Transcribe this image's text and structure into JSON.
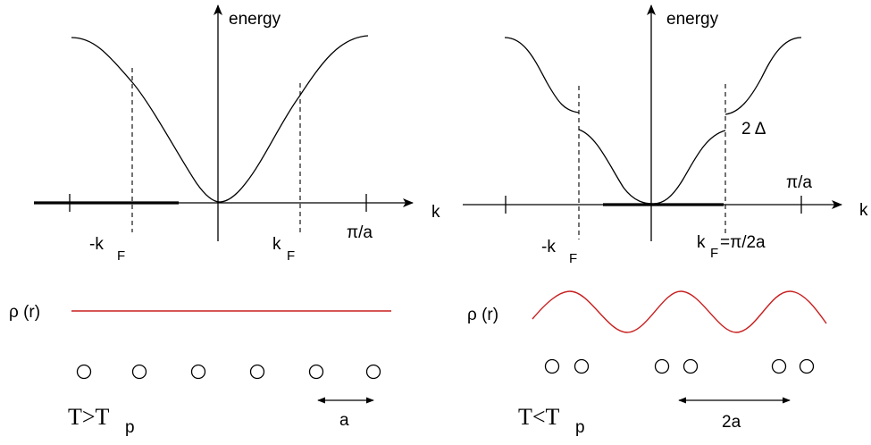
{
  "left_panel": {
    "axis_y_label": "energy",
    "axis_x_label": "k",
    "kf_neg_label": "-k",
    "kf_pos_label": "k",
    "kf_subscript": "F",
    "zone_edge_label": "π/a",
    "rho_label": "ρ (r)",
    "atom_count": 6,
    "lattice_label": "a",
    "temp_label_main": "T>T",
    "temp_label_sub": "p"
  },
  "right_panel": {
    "axis_y_label": "energy",
    "axis_x_label": "k",
    "kf_neg_label": "-k",
    "kf_pos_label": "k",
    "kf_subscript": "F",
    "kf_pos_suffix": "=π/2a",
    "zone_edge_label": "π/a",
    "gap_label": "2 Δ",
    "rho_label": "ρ (r)",
    "atom_pairs": 3,
    "lattice_label": "2a",
    "temp_label_main": "T<T",
    "temp_label_sub": "p"
  },
  "colors": {
    "density_wave": "#c81e1e",
    "ink": "#000000"
  }
}
